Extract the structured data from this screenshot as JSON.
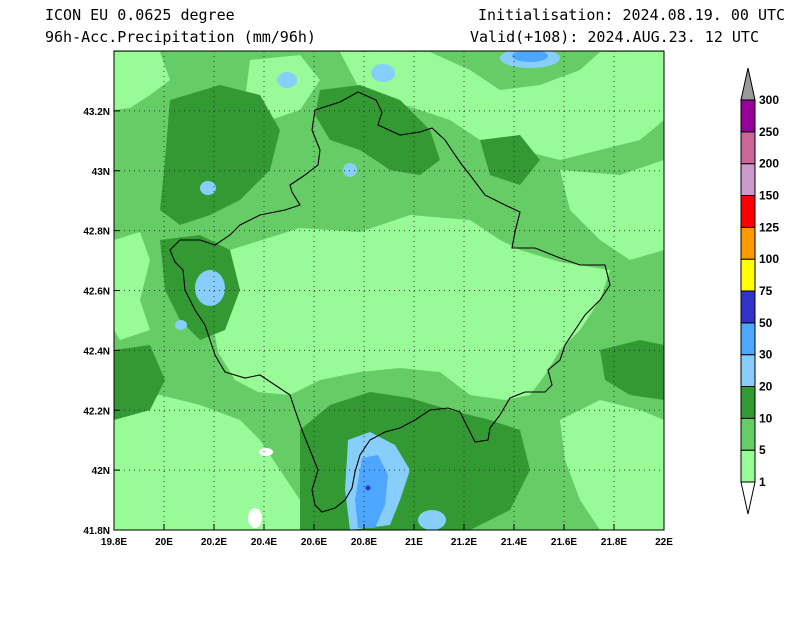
{
  "header": {
    "model": "ICON EU 0.0625 degree",
    "variable": "96h-Acc.Precipitation (mm/96h)",
    "init": "Initialisation: 2024.08.19. 00 UTC",
    "valid": "Valid(+108): 2024.AUG.23. 12 UTC"
  },
  "map": {
    "lon_ticks": [
      "19.8E",
      "20E",
      "20.2E",
      "20.4E",
      "20.6E",
      "20.8E",
      "21E",
      "21.2E",
      "21.4E",
      "21.6E",
      "21.8E",
      "22E"
    ],
    "lat_ticks": [
      "43.2N",
      "43N",
      "42.8N",
      "42.6N",
      "42.4N",
      "42.2N",
      "42N",
      "41.8N"
    ],
    "lon_range": [
      19.8,
      22.0
    ],
    "lat_range": [
      41.8,
      43.4
    ]
  },
  "colorbar": {
    "levels": [
      "1",
      "5",
      "10",
      "20",
      "30",
      "50",
      "75",
      "100",
      "125",
      "150",
      "200",
      "250",
      "300"
    ],
    "colors": [
      "#ffffff",
      "#98fb98",
      "#66cd66",
      "#339933",
      "#87cefa",
      "#4da6ff",
      "#3333cc",
      "#ffff00",
      "#ff9900",
      "#ff0000",
      "#cc99cc",
      "#cc6699",
      "#990099",
      "#999999"
    ]
  }
}
